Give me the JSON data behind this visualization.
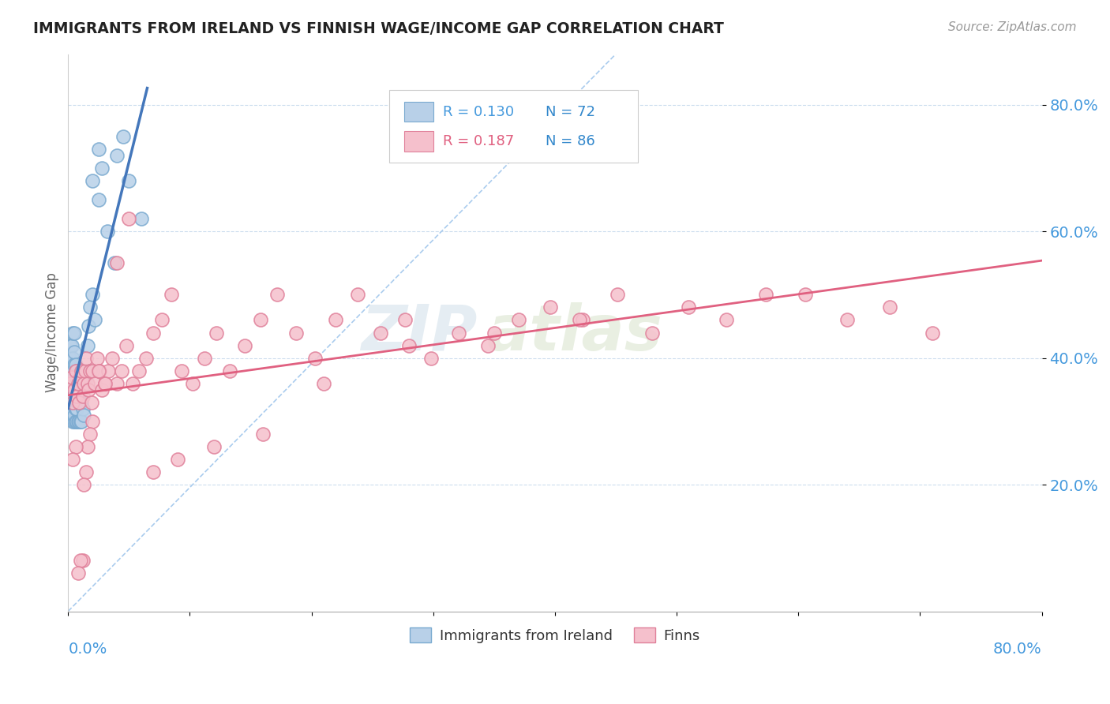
{
  "title": "IMMIGRANTS FROM IRELAND VS FINNISH WAGE/INCOME GAP CORRELATION CHART",
  "source": "Source: ZipAtlas.com",
  "ylabel": "Wage/Income Gap",
  "xlim": [
    0.0,
    0.8
  ],
  "ylim": [
    0.0,
    0.88
  ],
  "legend_r1": "R = 0.130",
  "legend_n1": "N = 72",
  "legend_r2": "R = 0.187",
  "legend_n2": "N = 86",
  "color_ireland": "#b8d0e8",
  "color_ireland_edge": "#7aaad0",
  "color_finns": "#f5c0cc",
  "color_finns_edge": "#e0809a",
  "color_ireland_line": "#4477bb",
  "color_finns_line": "#e06080",
  "color_ref_line": "#aaccee",
  "color_title": "#222222",
  "color_axis_blue": "#4499dd",
  "color_n_blue": "#3388cc",
  "background_color": "#ffffff",
  "watermark_zip": "ZIP",
  "watermark_atlas": "atlas",
  "ireland_x": [
    0.001,
    0.001,
    0.001,
    0.001,
    0.001,
    0.002,
    0.002,
    0.002,
    0.002,
    0.002,
    0.002,
    0.003,
    0.003,
    0.003,
    0.003,
    0.003,
    0.003,
    0.003,
    0.003,
    0.004,
    0.004,
    0.004,
    0.004,
    0.004,
    0.004,
    0.004,
    0.005,
    0.005,
    0.005,
    0.005,
    0.005,
    0.005,
    0.005,
    0.005,
    0.006,
    0.006,
    0.006,
    0.006,
    0.006,
    0.007,
    0.007,
    0.007,
    0.007,
    0.008,
    0.008,
    0.008,
    0.009,
    0.009,
    0.009,
    0.01,
    0.01,
    0.011,
    0.011,
    0.012,
    0.013,
    0.014,
    0.015,
    0.016,
    0.017,
    0.018,
    0.02,
    0.022,
    0.025,
    0.028,
    0.032,
    0.038,
    0.04,
    0.045,
    0.05,
    0.06,
    0.02,
    0.025
  ],
  "ireland_y": [
    0.34,
    0.36,
    0.37,
    0.38,
    0.4,
    0.32,
    0.33,
    0.35,
    0.37,
    0.39,
    0.42,
    0.31,
    0.33,
    0.34,
    0.36,
    0.37,
    0.38,
    0.4,
    0.42,
    0.3,
    0.32,
    0.34,
    0.36,
    0.38,
    0.4,
    0.44,
    0.3,
    0.31,
    0.33,
    0.35,
    0.37,
    0.39,
    0.41,
    0.44,
    0.3,
    0.32,
    0.34,
    0.36,
    0.39,
    0.3,
    0.32,
    0.35,
    0.38,
    0.3,
    0.33,
    0.36,
    0.3,
    0.33,
    0.37,
    0.3,
    0.34,
    0.3,
    0.33,
    0.32,
    0.31,
    0.36,
    0.38,
    0.42,
    0.45,
    0.48,
    0.5,
    0.46,
    0.65,
    0.7,
    0.6,
    0.55,
    0.72,
    0.75,
    0.68,
    0.62,
    0.68,
    0.73
  ],
  "finns_x": [
    0.002,
    0.003,
    0.004,
    0.005,
    0.006,
    0.007,
    0.008,
    0.009,
    0.01,
    0.011,
    0.012,
    0.013,
    0.014,
    0.015,
    0.016,
    0.017,
    0.018,
    0.019,
    0.02,
    0.022,
    0.024,
    0.026,
    0.028,
    0.03,
    0.033,
    0.036,
    0.04,
    0.044,
    0.048,
    0.053,
    0.058,
    0.064,
    0.07,
    0.077,
    0.085,
    0.093,
    0.102,
    0.112,
    0.122,
    0.133,
    0.145,
    0.158,
    0.172,
    0.187,
    0.203,
    0.22,
    0.238,
    0.257,
    0.277,
    0.298,
    0.321,
    0.345,
    0.37,
    0.396,
    0.423,
    0.451,
    0.48,
    0.51,
    0.541,
    0.573,
    0.606,
    0.64,
    0.675,
    0.71,
    0.42,
    0.35,
    0.28,
    0.21,
    0.16,
    0.12,
    0.09,
    0.07,
    0.05,
    0.04,
    0.03,
    0.025,
    0.02,
    0.018,
    0.016,
    0.015,
    0.013,
    0.012,
    0.01,
    0.008,
    0.006,
    0.004
  ],
  "finns_y": [
    0.36,
    0.37,
    0.33,
    0.35,
    0.38,
    0.34,
    0.36,
    0.33,
    0.37,
    0.38,
    0.34,
    0.36,
    0.38,
    0.4,
    0.36,
    0.35,
    0.38,
    0.33,
    0.38,
    0.36,
    0.4,
    0.38,
    0.35,
    0.36,
    0.38,
    0.4,
    0.36,
    0.38,
    0.42,
    0.36,
    0.38,
    0.4,
    0.44,
    0.46,
    0.5,
    0.38,
    0.36,
    0.4,
    0.44,
    0.38,
    0.42,
    0.46,
    0.5,
    0.44,
    0.4,
    0.46,
    0.5,
    0.44,
    0.46,
    0.4,
    0.44,
    0.42,
    0.46,
    0.48,
    0.46,
    0.5,
    0.44,
    0.48,
    0.46,
    0.5,
    0.5,
    0.46,
    0.48,
    0.44,
    0.46,
    0.44,
    0.42,
    0.36,
    0.28,
    0.26,
    0.24,
    0.22,
    0.62,
    0.55,
    0.36,
    0.38,
    0.3,
    0.28,
    0.26,
    0.22,
    0.2,
    0.08,
    0.08,
    0.06,
    0.26,
    0.24
  ]
}
